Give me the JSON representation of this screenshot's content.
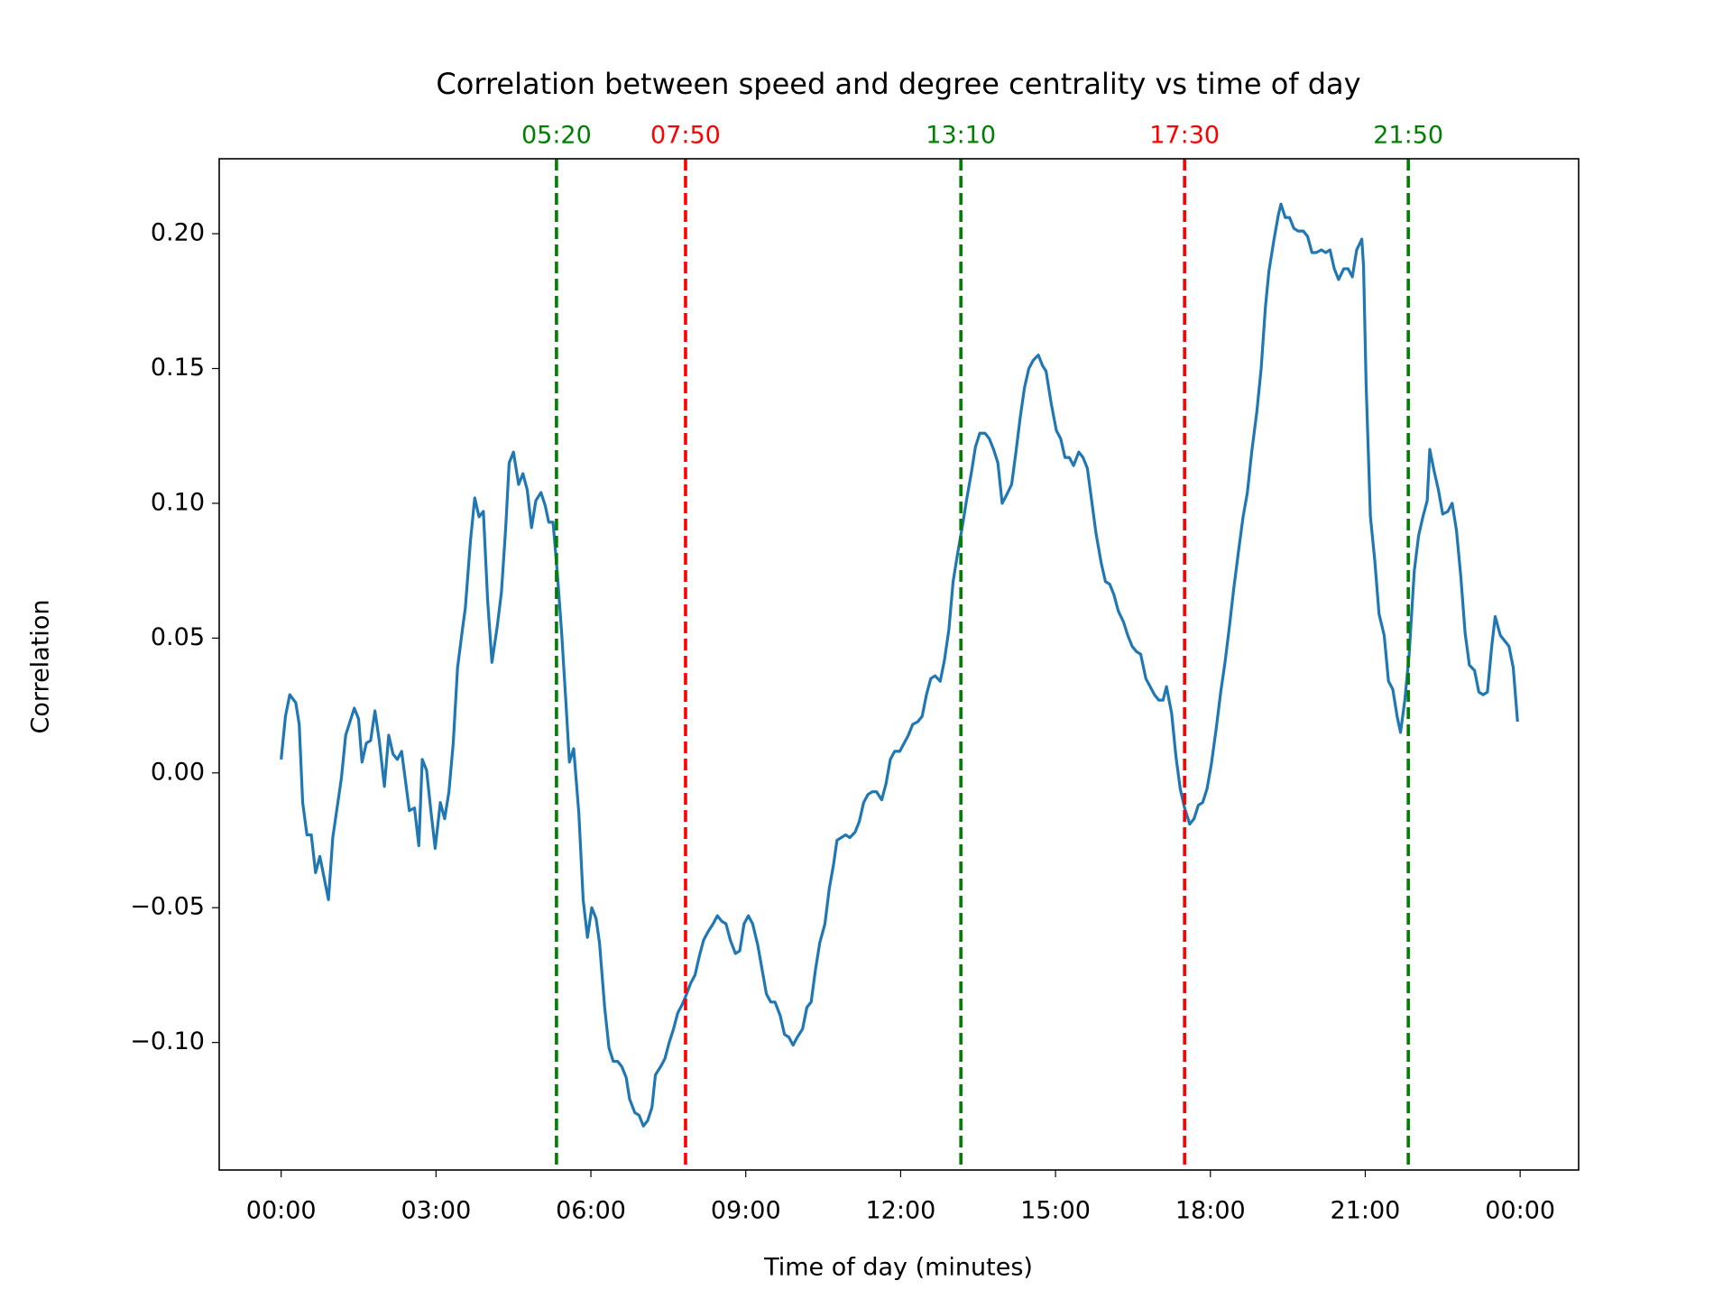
{
  "chart_data": {
    "type": "line",
    "title": "Correlation between speed and degree centrality vs time of day",
    "xlabel": "Time of day (minutes)",
    "ylabel": "Correlation",
    "color": "#1f77b4",
    "xlim": [
      -72,
      1508
    ],
    "ylim": [
      -0.1473,
      0.2278
    ],
    "xticks": [
      {
        "value": 0,
        "label": "00:00"
      },
      {
        "value": 180,
        "label": "03:00"
      },
      {
        "value": 360,
        "label": "06:00"
      },
      {
        "value": 540,
        "label": "09:00"
      },
      {
        "value": 720,
        "label": "12:00"
      },
      {
        "value": 900,
        "label": "15:00"
      },
      {
        "value": 1080,
        "label": "18:00"
      },
      {
        "value": 1260,
        "label": "21:00"
      },
      {
        "value": 1440,
        "label": "00:00"
      }
    ],
    "yticks": [
      {
        "value": -0.1,
        "label": "−0.10"
      },
      {
        "value": -0.05,
        "label": "−0.05"
      },
      {
        "value": 0,
        "label": "0.00"
      },
      {
        "value": 0.05,
        "label": "0.05"
      },
      {
        "value": 0.1,
        "label": "0.10"
      },
      {
        "value": 0.15,
        "label": "0.15"
      },
      {
        "value": 0.2,
        "label": "0.20"
      }
    ],
    "vlines": [
      {
        "x": 320,
        "label": "05:20",
        "color": "#008000"
      },
      {
        "x": 470,
        "label": "07:50",
        "color": "#ff0000"
      },
      {
        "x": 790,
        "label": "13:10",
        "color": "#008000"
      },
      {
        "x": 1050,
        "label": "17:30",
        "color": "#ff0000"
      },
      {
        "x": 1310,
        "label": "21:50",
        "color": "#008000"
      }
    ],
    "x": [
      0,
      5,
      10,
      17,
      21,
      25,
      30,
      35,
      40,
      45,
      55,
      60,
      70,
      75,
      85,
      90,
      94,
      99,
      104,
      109,
      114,
      120,
      125,
      130,
      135,
      140,
      149,
      155,
      160,
      164,
      169,
      174,
      179,
      185,
      190,
      195,
      200,
      205,
      211,
      214,
      220,
      225,
      230,
      235,
      240,
      245,
      251,
      256,
      261,
      265,
      270,
      276,
      281,
      286,
      291,
      296,
      302,
      307,
      311,
      316,
      321,
      326,
      331,
      335,
      340,
      346,
      351,
      356,
      361,
      366,
      370,
      376,
      381,
      386,
      391,
      396,
      401,
      405,
      411,
      416,
      421,
      426,
      431,
      435,
      441,
      446,
      451,
      456,
      461,
      466,
      470,
      476,
      481,
      486,
      491,
      496,
      502,
      507,
      512,
      517,
      522,
      528,
      533,
      538,
      543,
      548,
      554,
      559,
      564,
      569,
      574,
      580,
      585,
      590,
      595,
      600,
      606,
      611,
      616,
      621,
      626,
      632,
      637,
      642,
      646,
      651,
      656,
      661,
      667,
      672,
      677,
      682,
      687,
      692,
      698,
      703,
      708,
      713,
      719,
      724,
      729,
      734,
      740,
      745,
      750,
      755,
      760,
      766,
      771,
      776,
      781,
      786,
      792,
      797,
      802,
      807,
      812,
      818,
      823,
      828,
      833,
      838,
      843,
      849,
      854,
      859,
      864,
      869,
      874,
      880,
      885,
      889,
      895,
      901,
      906,
      911,
      916,
      921,
      927,
      932,
      937,
      942,
      947,
      953,
      958,
      963,
      968,
      973,
      979,
      984,
      989,
      994,
      999,
      1005,
      1010,
      1015,
      1020,
      1025,
      1029,
      1035,
      1040,
      1045,
      1050,
      1056,
      1061,
      1066,
      1071,
      1076,
      1081,
      1087,
      1092,
      1097,
      1102,
      1107,
      1113,
      1118,
      1123,
      1128,
      1134,
      1139,
      1144,
      1148,
      1154,
      1159,
      1162,
      1167,
      1172,
      1177,
      1182,
      1188,
      1193,
      1198,
      1203,
      1209,
      1214,
      1219,
      1224,
      1229,
      1235,
      1240,
      1245,
      1250,
      1256,
      1258,
      1261,
      1266,
      1271,
      1276,
      1282,
      1287,
      1292,
      1297,
      1301,
      1306,
      1311,
      1317,
      1322,
      1327,
      1332,
      1335,
      1340,
      1345,
      1350,
      1356,
      1361,
      1366,
      1371,
      1376,
      1381,
      1387,
      1392,
      1397,
      1402,
      1407,
      1411,
      1417,
      1422,
      1427,
      1432,
      1437
    ],
    "values": [
      0.005,
      0.021,
      0.029,
      0.026,
      0.018,
      -0.011,
      -0.023,
      -0.023,
      -0.037,
      -0.031,
      -0.047,
      -0.024,
      -0.002,
      0.014,
      0.024,
      0.02,
      0.004,
      0.011,
      0.012,
      0.023,
      0.012,
      -0.005,
      0.014,
      0.007,
      0.005,
      0.008,
      -0.014,
      -0.013,
      -0.027,
      0.005,
      0.001,
      -0.014,
      -0.028,
      -0.011,
      -0.017,
      -0.007,
      0.011,
      0.039,
      0.054,
      0.061,
      0.086,
      0.102,
      0.095,
      0.097,
      0.064,
      0.041,
      0.054,
      0.067,
      0.091,
      0.115,
      0.119,
      0.107,
      0.111,
      0.105,
      0.091,
      0.101,
      0.104,
      0.099,
      0.093,
      0.093,
      0.074,
      0.052,
      0.026,
      0.004,
      0.009,
      -0.015,
      -0.047,
      -0.061,
      -0.05,
      -0.054,
      -0.063,
      -0.087,
      -0.102,
      -0.107,
      -0.107,
      -0.109,
      -0.113,
      -0.121,
      -0.126,
      -0.127,
      -0.131,
      -0.129,
      -0.124,
      -0.112,
      -0.109,
      -0.106,
      -0.1,
      -0.095,
      -0.089,
      -0.086,
      -0.083,
      -0.078,
      -0.075,
      -0.068,
      -0.062,
      -0.059,
      -0.056,
      -0.053,
      -0.055,
      -0.056,
      -0.062,
      -0.067,
      -0.066,
      -0.056,
      -0.053,
      -0.056,
      -0.064,
      -0.073,
      -0.082,
      -0.085,
      -0.085,
      -0.09,
      -0.097,
      -0.098,
      -0.101,
      -0.098,
      -0.095,
      -0.087,
      -0.085,
      -0.073,
      -0.063,
      -0.056,
      -0.043,
      -0.034,
      -0.025,
      -0.024,
      -0.023,
      -0.024,
      -0.022,
      -0.018,
      -0.011,
      -0.008,
      -0.007,
      -0.007,
      -0.01,
      -0.004,
      0.005,
      0.008,
      0.008,
      0.011,
      0.014,
      0.018,
      0.019,
      0.021,
      0.029,
      0.035,
      0.036,
      0.034,
      0.042,
      0.053,
      0.071,
      0.081,
      0.092,
      0.102,
      0.111,
      0.121,
      0.126,
      0.126,
      0.124,
      0.12,
      0.115,
      0.1,
      0.103,
      0.107,
      0.119,
      0.132,
      0.143,
      0.15,
      0.153,
      0.155,
      0.151,
      0.149,
      0.137,
      0.127,
      0.124,
      0.117,
      0.117,
      0.114,
      0.119,
      0.117,
      0.113,
      0.101,
      0.089,
      0.078,
      0.071,
      0.07,
      0.066,
      0.06,
      0.056,
      0.051,
      0.047,
      0.045,
      0.044,
      0.035,
      0.032,
      0.029,
      0.027,
      0.027,
      0.032,
      0.022,
      0.006,
      -0.006,
      -0.013,
      -0.019,
      -0.017,
      -0.012,
      -0.011,
      -0.006,
      0.003,
      0.017,
      0.03,
      0.041,
      0.054,
      0.068,
      0.083,
      0.095,
      0.104,
      0.119,
      0.134,
      0.15,
      0.173,
      0.186,
      0.198,
      0.207,
      0.211,
      0.206,
      0.206,
      0.202,
      0.201,
      0.201,
      0.199,
      0.193,
      0.193,
      0.194,
      0.193,
      0.194,
      0.187,
      0.183,
      0.187,
      0.187,
      0.184,
      0.194,
      0.198,
      0.188,
      0.144,
      0.095,
      0.079,
      0.059,
      0.051,
      0.034,
      0.031,
      0.021,
      0.015,
      0.027,
      0.044,
      0.075,
      0.088,
      0.095,
      0.101,
      0.12,
      0.112,
      0.105,
      0.096,
      0.097,
      0.1,
      0.09,
      0.073,
      0.052,
      0.04,
      0.038,
      0.03,
      0.029,
      0.03,
      0.047,
      0.058,
      0.051,
      0.049,
      0.047,
      0.039,
      0.019
    ]
  }
}
